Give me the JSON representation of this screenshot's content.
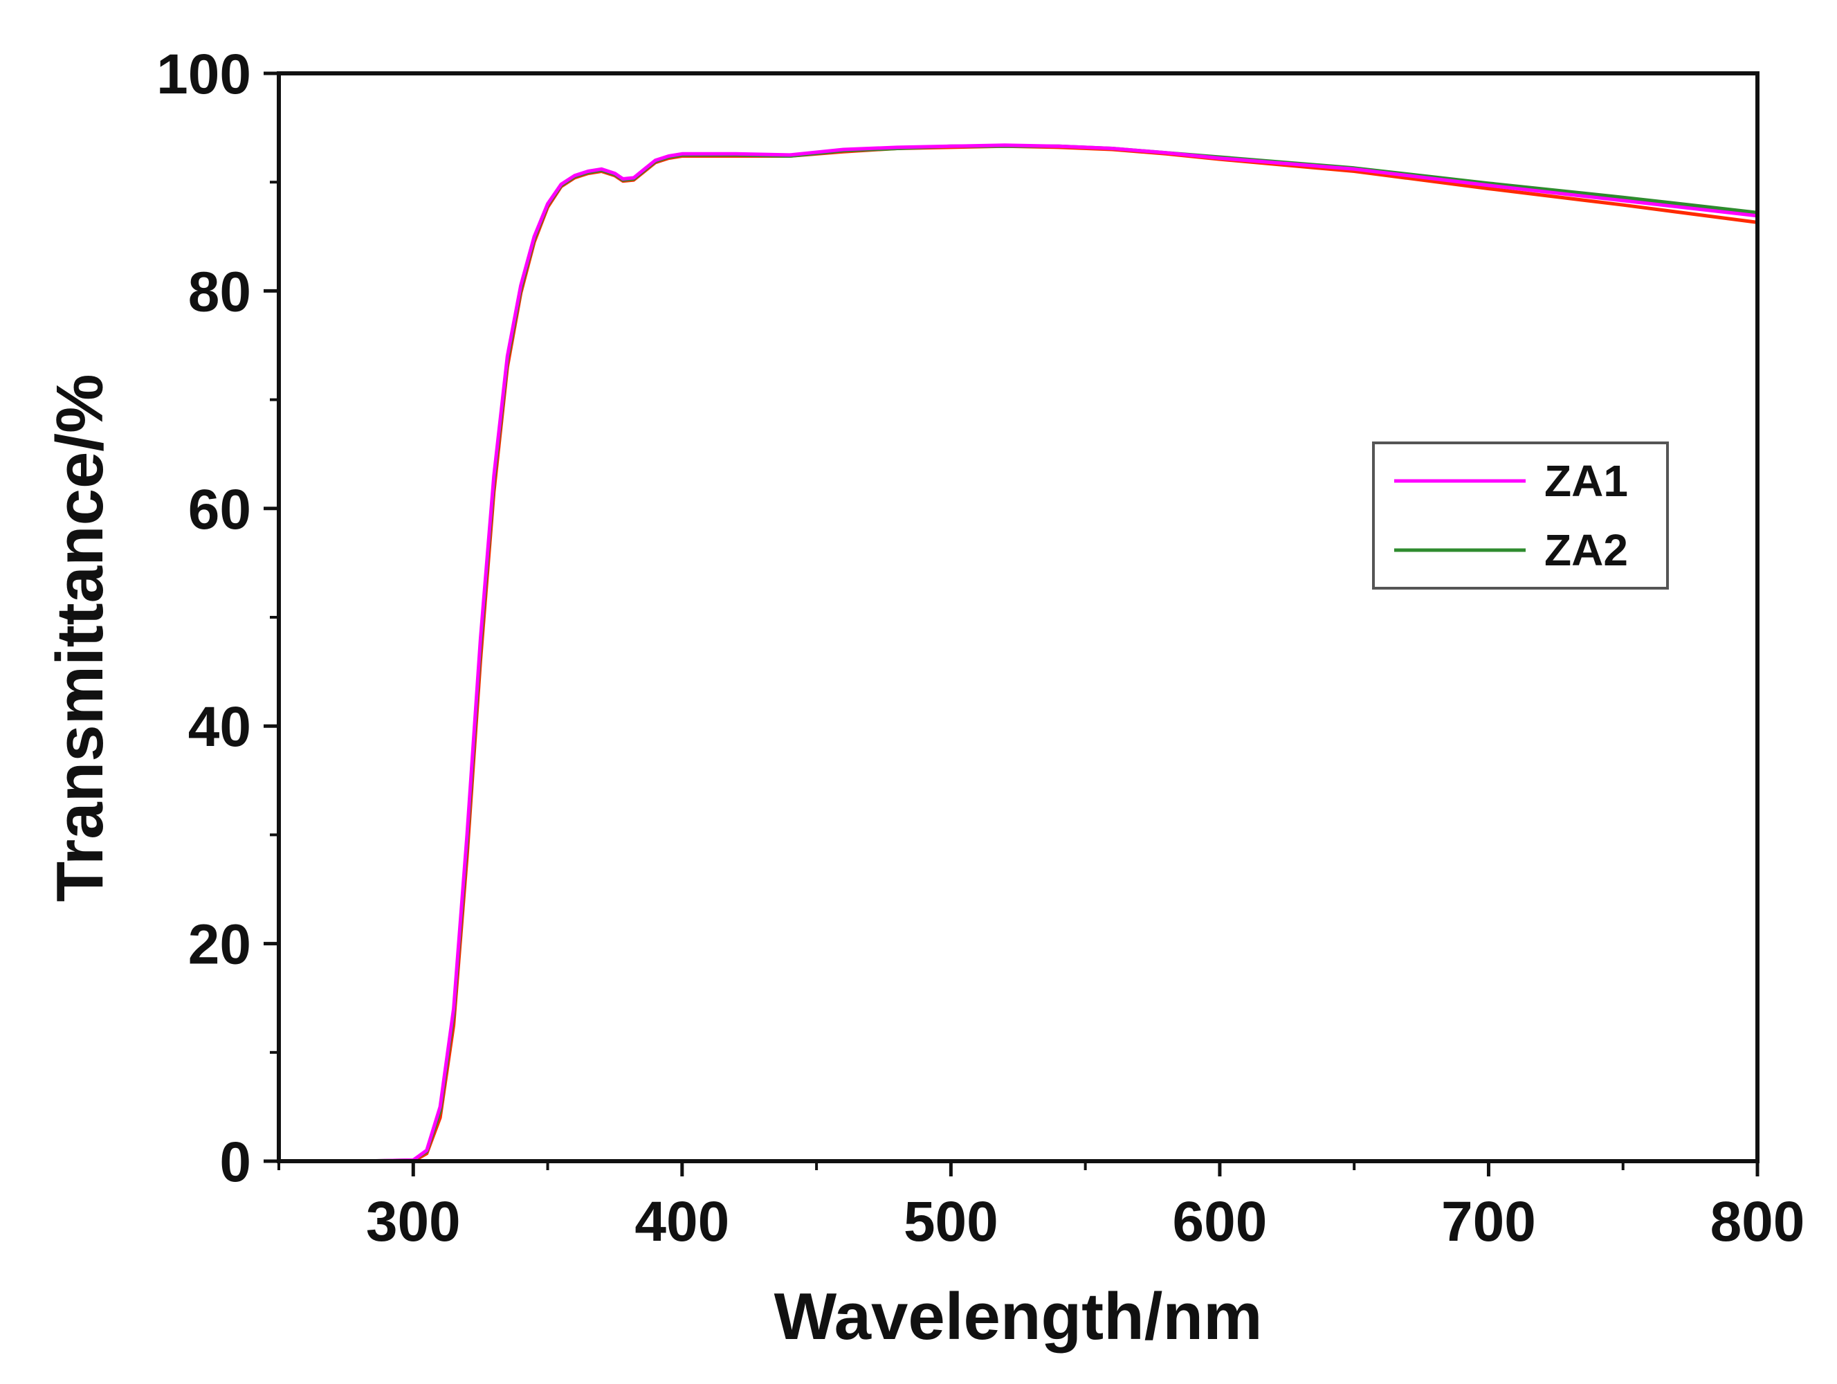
{
  "chart_data": {
    "type": "line",
    "title": "",
    "xlabel": "Wavelength/nm",
    "ylabel": "Transmittance/%",
    "xlim": [
      250,
      800
    ],
    "ylim": [
      0,
      100
    ],
    "x_ticks": [
      300,
      400,
      500,
      600,
      700,
      800
    ],
    "y_ticks": [
      0,
      20,
      40,
      60,
      80,
      100
    ],
    "x_minor_step": 50,
    "y_minor_step": 10,
    "legend_position": "right-middle",
    "grid": false,
    "series": [
      {
        "name": "ZA1",
        "color": "#ff00ff",
        "x": [
          250,
          280,
          300,
          305,
          310,
          315,
          320,
          325,
          330,
          335,
          340,
          345,
          350,
          355,
          360,
          365,
          370,
          375,
          378,
          382,
          386,
          390,
          395,
          400,
          420,
          440,
          460,
          480,
          500,
          520,
          540,
          560,
          580,
          600,
          650,
          700,
          750,
          800
        ],
        "y": [
          0,
          0,
          0.1,
          1,
          5,
          14,
          30,
          48,
          63,
          74,
          80.5,
          85,
          88,
          89.8,
          90.6,
          91,
          91.2,
          90.8,
          90.3,
          90.4,
          91.2,
          92,
          92.4,
          92.6,
          92.6,
          92.5,
          93,
          93.2,
          93.3,
          93.4,
          93.3,
          93.1,
          92.7,
          92.2,
          91.2,
          89.7,
          88.3,
          86.9
        ]
      },
      {
        "name": "ZA2",
        "color": "#2e8b2e",
        "x": [
          250,
          280,
          300,
          305,
          310,
          315,
          320,
          325,
          330,
          335,
          340,
          345,
          350,
          355,
          360,
          365,
          370,
          375,
          378,
          382,
          386,
          390,
          395,
          400,
          420,
          440,
          460,
          480,
          500,
          520,
          540,
          560,
          580,
          600,
          650,
          700,
          750,
          800
        ],
        "y": [
          0,
          0,
          0.1,
          0.9,
          4.6,
          13.5,
          29.3,
          47.3,
          62.5,
          73.6,
          80.2,
          84.8,
          87.9,
          89.7,
          90.5,
          90.9,
          91.1,
          90.7,
          90.2,
          90.3,
          91.1,
          91.9,
          92.3,
          92.5,
          92.5,
          92.4,
          92.9,
          93.1,
          93.3,
          93.3,
          93.3,
          93.1,
          92.7,
          92.3,
          91.3,
          89.9,
          88.6,
          87.2
        ]
      },
      {
        "name": "",
        "color": "#ff2a00",
        "x": [
          250,
          280,
          300,
          305,
          310,
          315,
          320,
          325,
          330,
          335,
          340,
          345,
          350,
          355,
          360,
          365,
          370,
          375,
          378,
          382,
          386,
          390,
          395,
          400,
          420,
          440,
          460,
          480,
          500,
          520,
          540,
          560,
          580,
          600,
          650,
          700,
          750,
          800
        ],
        "y": [
          0,
          0,
          0,
          0.7,
          4,
          12.5,
          28,
          46,
          61.5,
          73,
          79.8,
          84.5,
          87.7,
          89.6,
          90.4,
          90.8,
          91,
          90.6,
          90.1,
          90.2,
          91,
          91.8,
          92.2,
          92.4,
          92.4,
          92.4,
          92.8,
          93.1,
          93.2,
          93.3,
          93.2,
          93,
          92.6,
          92.1,
          91,
          89.4,
          87.9,
          86.3
        ]
      }
    ]
  }
}
